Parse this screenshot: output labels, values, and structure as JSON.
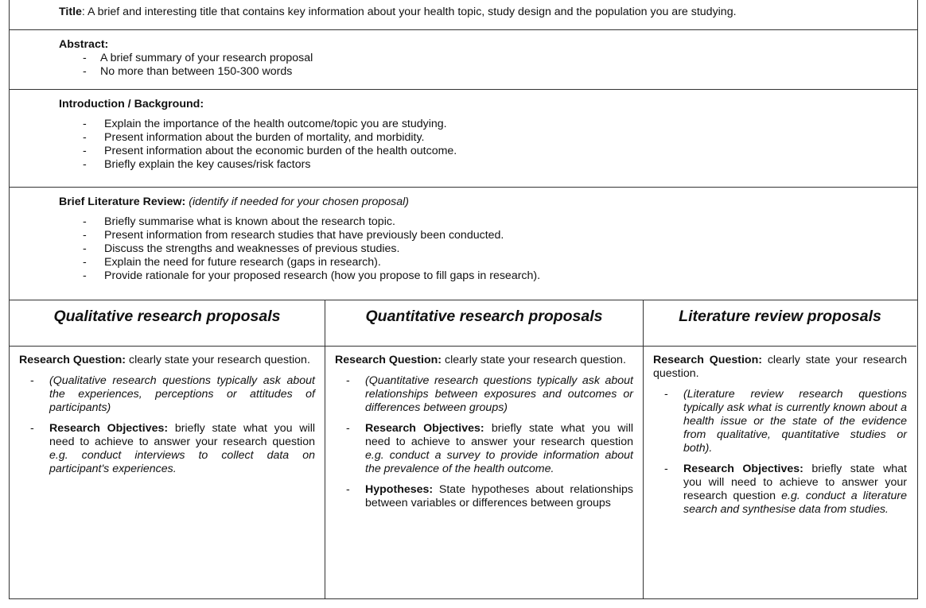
{
  "title_row": {
    "label": "Title",
    "text": ":  A brief and interesting title that contains key information about your health topic, study design and the population you are studying."
  },
  "abstract": {
    "heading": "Abstract:",
    "items": [
      "A brief summary of your research proposal",
      "No more than between 150-300 words"
    ]
  },
  "introduction": {
    "heading": "Introduction / Background:",
    "items": [
      "Explain the importance of the health outcome/topic you are studying.",
      "Present information about the burden of mortality, and morbidity.",
      "Present information about the economic burden of the health outcome.",
      "Briefly explain the key causes/risk factors"
    ]
  },
  "literature": {
    "heading": "Brief Literature Review:",
    "note": "(identify if needed for your chosen proposal)",
    "items": [
      "Briefly summarise what is known about the research topic.",
      "Present information from research studies that have previously been conducted.",
      "Discuss the strengths and weaknesses of previous studies.",
      "Explain the need for future research (gaps in research).",
      "Provide rationale for your proposed research (how you propose to fill gaps in research)."
    ]
  },
  "columns": [
    {
      "header": "Qualitative research proposals",
      "rq_label": "Research Question:",
      "rq_text": " clearly state your research question.",
      "note": "(Qualitative research questions typically ask about the experiences, perceptions or attitudes of participants)",
      "obj_label": "Research Objectives:",
      "obj_text": " briefly state what you will need to achieve to answer your research question ",
      "obj_eg": "e.g. conduct interviews to collect data on participant's experiences."
    },
    {
      "header": "Quantitative research proposals",
      "rq_label": "Research Question:",
      "rq_text": " clearly state your research question.",
      "note": "(Quantitative research questions typically ask about relationships between exposures and outcomes or differences between groups)",
      "obj_label": "Research Objectives:",
      "obj_text": " briefly state what you will need to achieve to answer your research question ",
      "obj_eg": "e.g. conduct a survey to provide information about the prevalence of the health outcome.",
      "hyp_label": "Hypotheses:",
      "hyp_text": " State hypotheses about relationships between variables or differences between groups"
    },
    {
      "header": "Literature review proposals",
      "rq_label": "Research Question:",
      "rq_text": " clearly state your research question.",
      "note": "(Literature review research questions typically ask what is currently known about a health issue or the state of the evidence from qualitative, quantitative studies or both).",
      "obj_label": "Research Objectives:",
      "obj_text": " briefly state what you will need to achieve to answer your research question ",
      "obj_eg": "e.g. conduct a literature search and synthesise data from studies."
    }
  ]
}
